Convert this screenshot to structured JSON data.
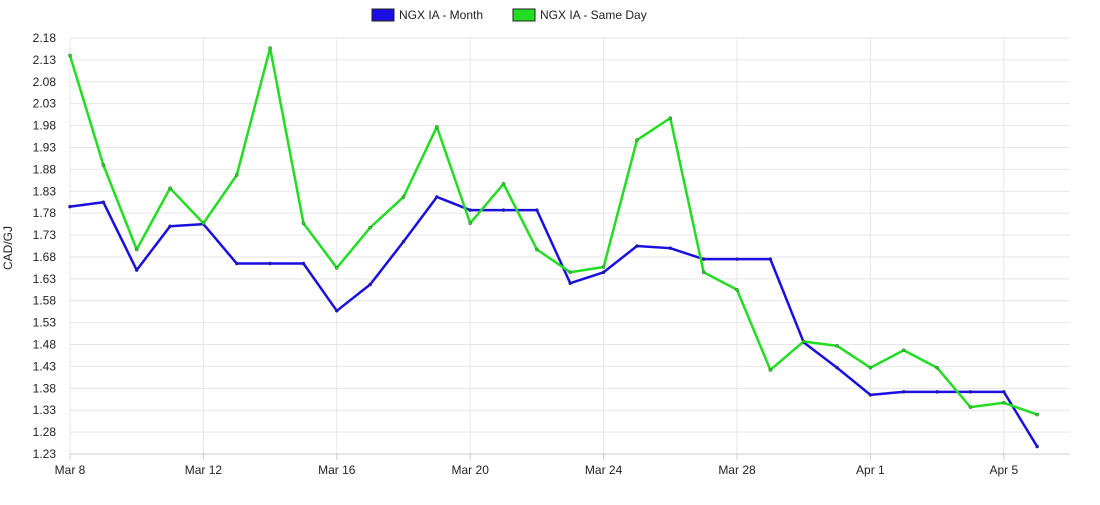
{
  "chart_data": {
    "type": "line",
    "ylabel": "CAD/GJ",
    "xlabel": "",
    "ylim": [
      1.23,
      2.18
    ],
    "grid": true,
    "legend_placement": "top-center",
    "y_ticks": [
      "2.18",
      "2.13",
      "2.08",
      "2.03",
      "1.98",
      "1.93",
      "1.88",
      "1.83",
      "1.78",
      "1.73",
      "1.68",
      "1.63",
      "1.58",
      "1.53",
      "1.48",
      "1.43",
      "1.38",
      "1.33",
      "1.28",
      "1.23"
    ],
    "x_tick_labels": [
      "Mar 8",
      "Mar 12",
      "Mar 16",
      "Mar 20",
      "Mar 24",
      "Mar 28",
      "Apr 1",
      "Apr 5"
    ],
    "x_tick_index": [
      0,
      4,
      8,
      12,
      16,
      20,
      24,
      28
    ],
    "x": [
      "Mar 8",
      "Mar 9",
      "Mar 10",
      "Mar 11",
      "Mar 12",
      "Mar 13",
      "Mar 14",
      "Mar 15",
      "Mar 16",
      "Mar 17",
      "Mar 18",
      "Mar 19",
      "Mar 20",
      "Mar 21",
      "Mar 22",
      "Mar 23",
      "Mar 24",
      "Mar 25",
      "Mar 26",
      "Mar 27",
      "Mar 28",
      "Mar 29",
      "Mar 30",
      "Mar 31",
      "Apr 1",
      "Apr 2",
      "Apr 3",
      "Apr 4",
      "Apr 5",
      "Apr 6"
    ],
    "series": [
      {
        "name": "NGX IA - Month",
        "color": "#1a0fe0",
        "values": [
          1.795,
          1.805,
          1.65,
          1.75,
          1.755,
          1.665,
          1.665,
          1.665,
          1.557,
          1.617,
          1.715,
          1.817,
          1.787,
          1.787,
          1.787,
          1.62,
          1.645,
          1.705,
          1.7,
          1.675,
          1.675,
          1.675,
          1.485,
          1.427,
          1.365,
          1.372,
          1.372,
          1.372,
          1.372,
          1.247
        ]
      },
      {
        "name": "NGX IA - Same Day",
        "color": "#22dd22",
        "values": [
          2.14,
          1.89,
          1.697,
          1.837,
          1.757,
          1.867,
          2.157,
          1.757,
          1.655,
          1.747,
          1.817,
          1.977,
          1.757,
          1.847,
          1.697,
          1.645,
          1.657,
          1.947,
          1.997,
          1.645,
          1.605,
          1.422,
          1.487,
          1.477,
          1.427,
          1.467,
          1.427,
          1.337,
          1.347,
          1.32
        ]
      }
    ]
  }
}
